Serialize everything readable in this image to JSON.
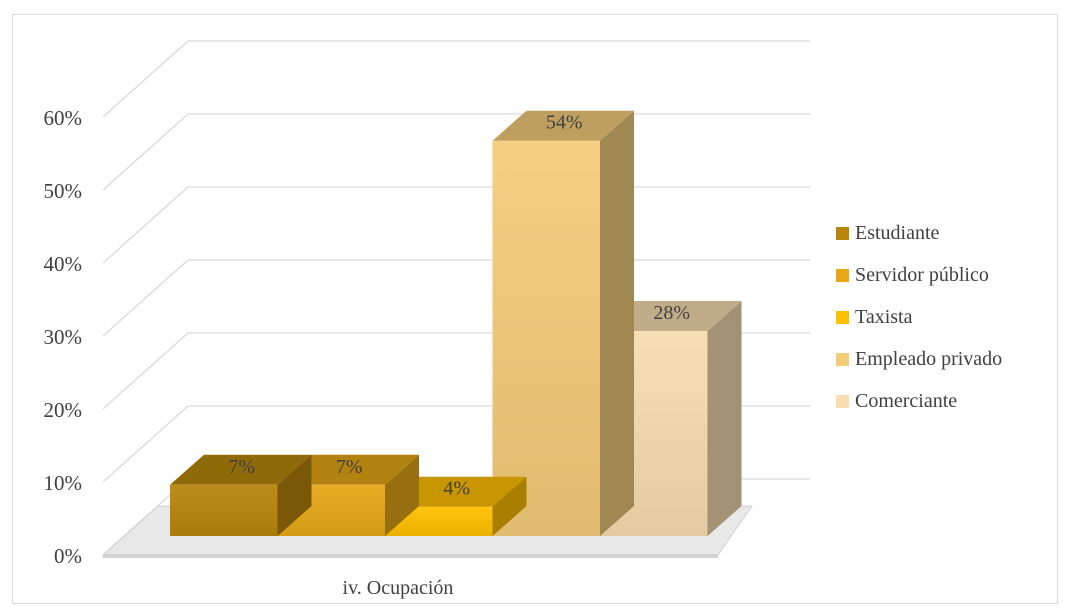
{
  "chart_data": {
    "type": "bar",
    "style": "3d-clustered-column",
    "categories": [
      "iv. Ocupación"
    ],
    "series": [
      {
        "name": "Estudiante",
        "values": [
          7
        ],
        "label": "7%",
        "color": "#B8860B"
      },
      {
        "name": "Servidor público",
        "values": [
          7
        ],
        "label": "7%",
        "color": "#E6A817"
      },
      {
        "name": "Taxista",
        "values": [
          4
        ],
        "label": "4%",
        "color": "#FFC000"
      },
      {
        "name": "Empleado privado",
        "values": [
          54
        ],
        "label": "54%",
        "color": "#F4CC7A"
      },
      {
        "name": "Comerciante",
        "values": [
          28
        ],
        "label": "28%",
        "color": "#F7DDB0"
      }
    ],
    "y_ticks": [
      "0%",
      "10%",
      "20%",
      "30%",
      "40%",
      "50%",
      "60%"
    ],
    "ylim": [
      0,
      60
    ],
    "grid": true,
    "legend_position": "right"
  }
}
